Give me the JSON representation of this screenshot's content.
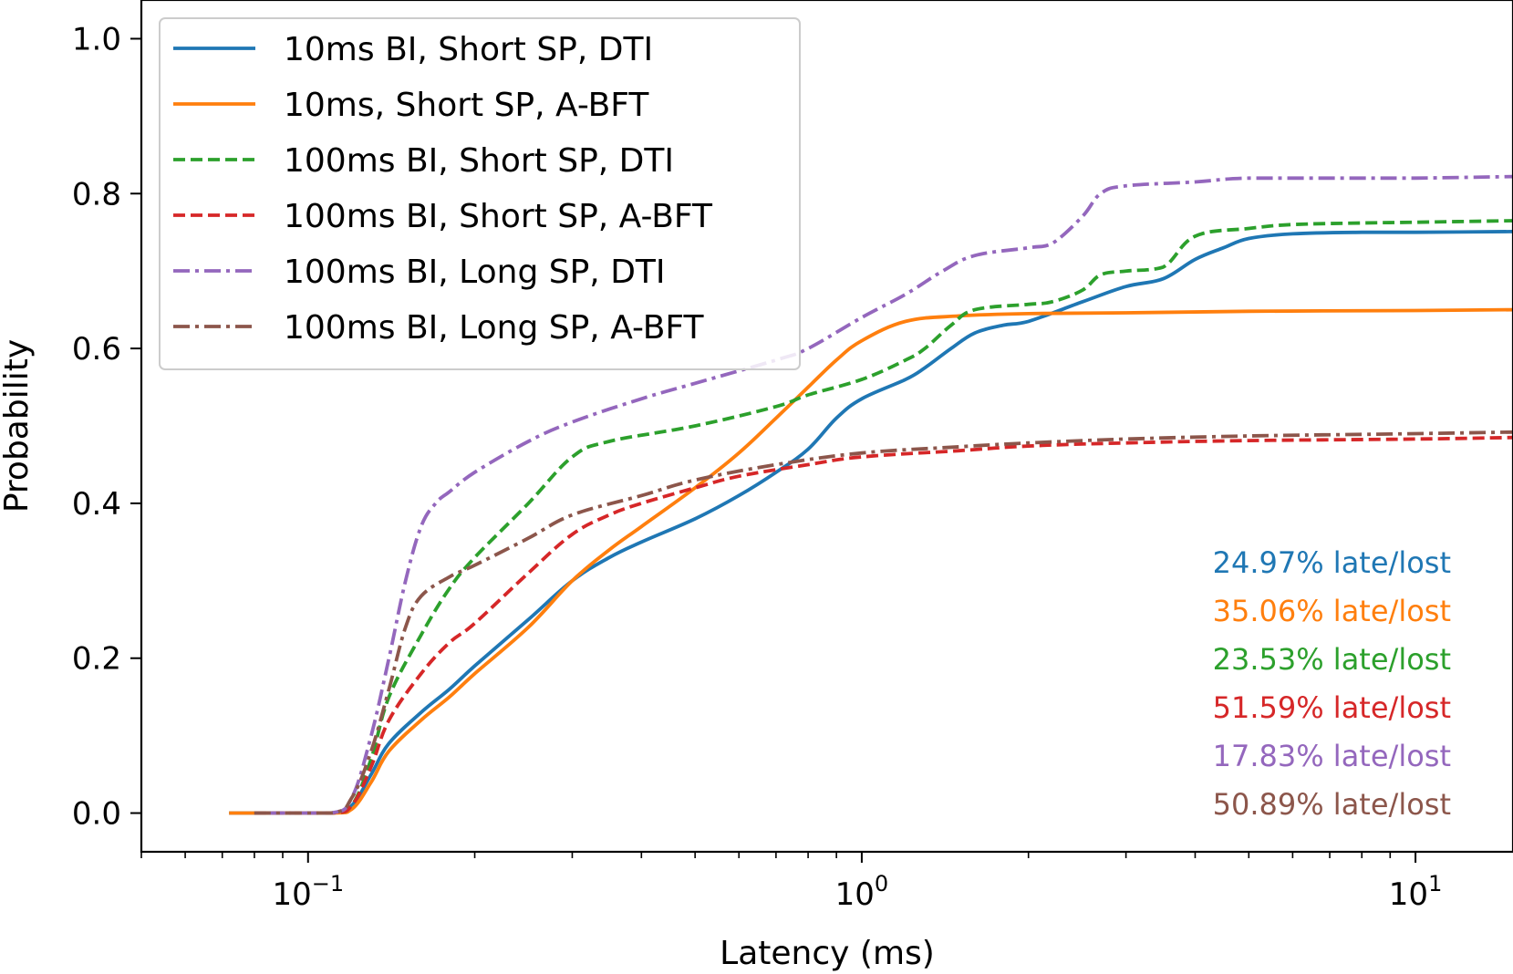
{
  "chart_data": {
    "type": "line",
    "title": "",
    "xlabel": "Latency (ms)",
    "ylabel": "Probability",
    "xscale": "log",
    "xlim": [
      0.05,
      15
    ],
    "ylim": [
      -0.05,
      1.05
    ],
    "x_ticks": [
      {
        "value": 0.1,
        "base": "10",
        "exp": "−1"
      },
      {
        "value": 1,
        "base": "10",
        "exp": "0"
      },
      {
        "value": 10,
        "base": "10",
        "exp": "1"
      }
    ],
    "y_ticks": [
      {
        "value": 0.0,
        "label": "0.0"
      },
      {
        "value": 0.2,
        "label": "0.2"
      },
      {
        "value": 0.4,
        "label": "0.4"
      },
      {
        "value": 0.6,
        "label": "0.6"
      },
      {
        "value": 0.8,
        "label": "0.8"
      },
      {
        "value": 1.0,
        "label": "1.0"
      }
    ],
    "legend_position": "top-left",
    "series": [
      {
        "name": "10ms BI, Short SP, DTI",
        "color": "#1f77b4",
        "dash": "solid",
        "points": [
          [
            0.072,
            0.0
          ],
          [
            0.11,
            0.0
          ],
          [
            0.12,
            0.01
          ],
          [
            0.13,
            0.05
          ],
          [
            0.14,
            0.09
          ],
          [
            0.16,
            0.13
          ],
          [
            0.18,
            0.16
          ],
          [
            0.2,
            0.19
          ],
          [
            0.25,
            0.25
          ],
          [
            0.3,
            0.3
          ],
          [
            0.35,
            0.33
          ],
          [
            0.4,
            0.35
          ],
          [
            0.5,
            0.38
          ],
          [
            0.6,
            0.41
          ],
          [
            0.7,
            0.44
          ],
          [
            0.8,
            0.47
          ],
          [
            0.9,
            0.51
          ],
          [
            1.0,
            0.535
          ],
          [
            1.2,
            0.56
          ],
          [
            1.3,
            0.575
          ],
          [
            1.45,
            0.6
          ],
          [
            1.6,
            0.62
          ],
          [
            1.8,
            0.63
          ],
          [
            2.0,
            0.635
          ],
          [
            2.5,
            0.66
          ],
          [
            3.0,
            0.68
          ],
          [
            3.5,
            0.69
          ],
          [
            4.0,
            0.715
          ],
          [
            4.5,
            0.73
          ],
          [
            5.0,
            0.742
          ],
          [
            6.0,
            0.748
          ],
          [
            8.0,
            0.75
          ],
          [
            10.0,
            0.75
          ],
          [
            15.0,
            0.751
          ]
        ]
      },
      {
        "name": "10ms, Short SP, A-BFT",
        "color": "#ff7f0e",
        "dash": "solid",
        "points": [
          [
            0.072,
            0.0
          ],
          [
            0.11,
            0.0
          ],
          [
            0.12,
            0.005
          ],
          [
            0.13,
            0.04
          ],
          [
            0.14,
            0.08
          ],
          [
            0.16,
            0.12
          ],
          [
            0.18,
            0.15
          ],
          [
            0.2,
            0.18
          ],
          [
            0.25,
            0.24
          ],
          [
            0.3,
            0.3
          ],
          [
            0.35,
            0.34
          ],
          [
            0.4,
            0.37
          ],
          [
            0.5,
            0.42
          ],
          [
            0.6,
            0.465
          ],
          [
            0.7,
            0.51
          ],
          [
            0.8,
            0.55
          ],
          [
            0.9,
            0.585
          ],
          [
            1.0,
            0.61
          ],
          [
            1.2,
            0.635
          ],
          [
            1.5,
            0.642
          ],
          [
            2.0,
            0.645
          ],
          [
            3.0,
            0.646
          ],
          [
            5.0,
            0.648
          ],
          [
            10.0,
            0.649
          ],
          [
            15.0,
            0.65
          ]
        ]
      },
      {
        "name": "100ms BI, Short SP, DTI",
        "color": "#2ca02c",
        "dash": "dashed",
        "points": [
          [
            0.08,
            0.0
          ],
          [
            0.11,
            0.0
          ],
          [
            0.12,
            0.01
          ],
          [
            0.13,
            0.07
          ],
          [
            0.14,
            0.15
          ],
          [
            0.16,
            0.23
          ],
          [
            0.18,
            0.29
          ],
          [
            0.2,
            0.33
          ],
          [
            0.25,
            0.4
          ],
          [
            0.3,
            0.46
          ],
          [
            0.35,
            0.48
          ],
          [
            0.5,
            0.5
          ],
          [
            0.7,
            0.525
          ],
          [
            0.8,
            0.54
          ],
          [
            1.0,
            0.56
          ],
          [
            1.2,
            0.585
          ],
          [
            1.3,
            0.6
          ],
          [
            1.45,
            0.63
          ],
          [
            1.6,
            0.65
          ],
          [
            2.0,
            0.657
          ],
          [
            2.2,
            0.66
          ],
          [
            2.5,
            0.675
          ],
          [
            2.7,
            0.695
          ],
          [
            3.0,
            0.7
          ],
          [
            3.5,
            0.705
          ],
          [
            4.0,
            0.745
          ],
          [
            5.0,
            0.755
          ],
          [
            6.0,
            0.76
          ],
          [
            8.0,
            0.762
          ],
          [
            10.0,
            0.763
          ],
          [
            15.0,
            0.765
          ]
        ]
      },
      {
        "name": "100ms BI, Short SP, A-BFT",
        "color": "#d62728",
        "dash": "dashed",
        "points": [
          [
            0.08,
            0.0
          ],
          [
            0.11,
            0.0
          ],
          [
            0.12,
            0.01
          ],
          [
            0.13,
            0.06
          ],
          [
            0.14,
            0.12
          ],
          [
            0.16,
            0.18
          ],
          [
            0.18,
            0.22
          ],
          [
            0.2,
            0.245
          ],
          [
            0.25,
            0.31
          ],
          [
            0.3,
            0.36
          ],
          [
            0.35,
            0.385
          ],
          [
            0.4,
            0.4
          ],
          [
            0.5,
            0.42
          ],
          [
            0.6,
            0.435
          ],
          [
            0.8,
            0.45
          ],
          [
            1.0,
            0.46
          ],
          [
            1.5,
            0.468
          ],
          [
            2.0,
            0.474
          ],
          [
            3.0,
            0.478
          ],
          [
            5.0,
            0.481
          ],
          [
            10.0,
            0.483
          ],
          [
            15.0,
            0.485
          ]
        ]
      },
      {
        "name": "100ms BI, Long SP, DTI",
        "color": "#9467bd",
        "dash": "dashdot",
        "points": [
          [
            0.085,
            0.0
          ],
          [
            0.11,
            0.0
          ],
          [
            0.12,
            0.02
          ],
          [
            0.13,
            0.1
          ],
          [
            0.14,
            0.2
          ],
          [
            0.15,
            0.3
          ],
          [
            0.16,
            0.37
          ],
          [
            0.17,
            0.4
          ],
          [
            0.18,
            0.415
          ],
          [
            0.2,
            0.44
          ],
          [
            0.25,
            0.48
          ],
          [
            0.3,
            0.505
          ],
          [
            0.4,
            0.535
          ],
          [
            0.5,
            0.555
          ],
          [
            0.7,
            0.585
          ],
          [
            0.8,
            0.6
          ],
          [
            1.0,
            0.64
          ],
          [
            1.2,
            0.67
          ],
          [
            1.4,
            0.7
          ],
          [
            1.6,
            0.72
          ],
          [
            2.0,
            0.73
          ],
          [
            2.2,
            0.735
          ],
          [
            2.5,
            0.77
          ],
          [
            2.7,
            0.8
          ],
          [
            3.0,
            0.81
          ],
          [
            4.0,
            0.815
          ],
          [
            5.0,
            0.82
          ],
          [
            8.0,
            0.82
          ],
          [
            10.0,
            0.82
          ],
          [
            15.0,
            0.822
          ]
        ]
      },
      {
        "name": "100ms BI, Long SP, A-BFT",
        "color": "#8c564b",
        "dash": "dashdot",
        "points": [
          [
            0.08,
            0.0
          ],
          [
            0.11,
            0.0
          ],
          [
            0.12,
            0.02
          ],
          [
            0.13,
            0.08
          ],
          [
            0.14,
            0.16
          ],
          [
            0.15,
            0.24
          ],
          [
            0.16,
            0.28
          ],
          [
            0.18,
            0.305
          ],
          [
            0.2,
            0.32
          ],
          [
            0.25,
            0.355
          ],
          [
            0.3,
            0.385
          ],
          [
            0.4,
            0.41
          ],
          [
            0.5,
            0.43
          ],
          [
            0.7,
            0.45
          ],
          [
            1.0,
            0.465
          ],
          [
            1.5,
            0.473
          ],
          [
            2.0,
            0.478
          ],
          [
            3.0,
            0.483
          ],
          [
            5.0,
            0.487
          ],
          [
            10.0,
            0.49
          ],
          [
            15.0,
            0.492
          ]
        ]
      }
    ],
    "annotations": [
      {
        "text": "24.97% late/lost",
        "color": "#1f77b4"
      },
      {
        "text": "35.06% late/lost",
        "color": "#ff7f0e"
      },
      {
        "text": "23.53% late/lost",
        "color": "#2ca02c"
      },
      {
        "text": "51.59% late/lost",
        "color": "#d62728"
      },
      {
        "text": "17.83% late/lost",
        "color": "#9467bd"
      },
      {
        "text": "50.89% late/lost",
        "color": "#8c564b"
      }
    ]
  }
}
